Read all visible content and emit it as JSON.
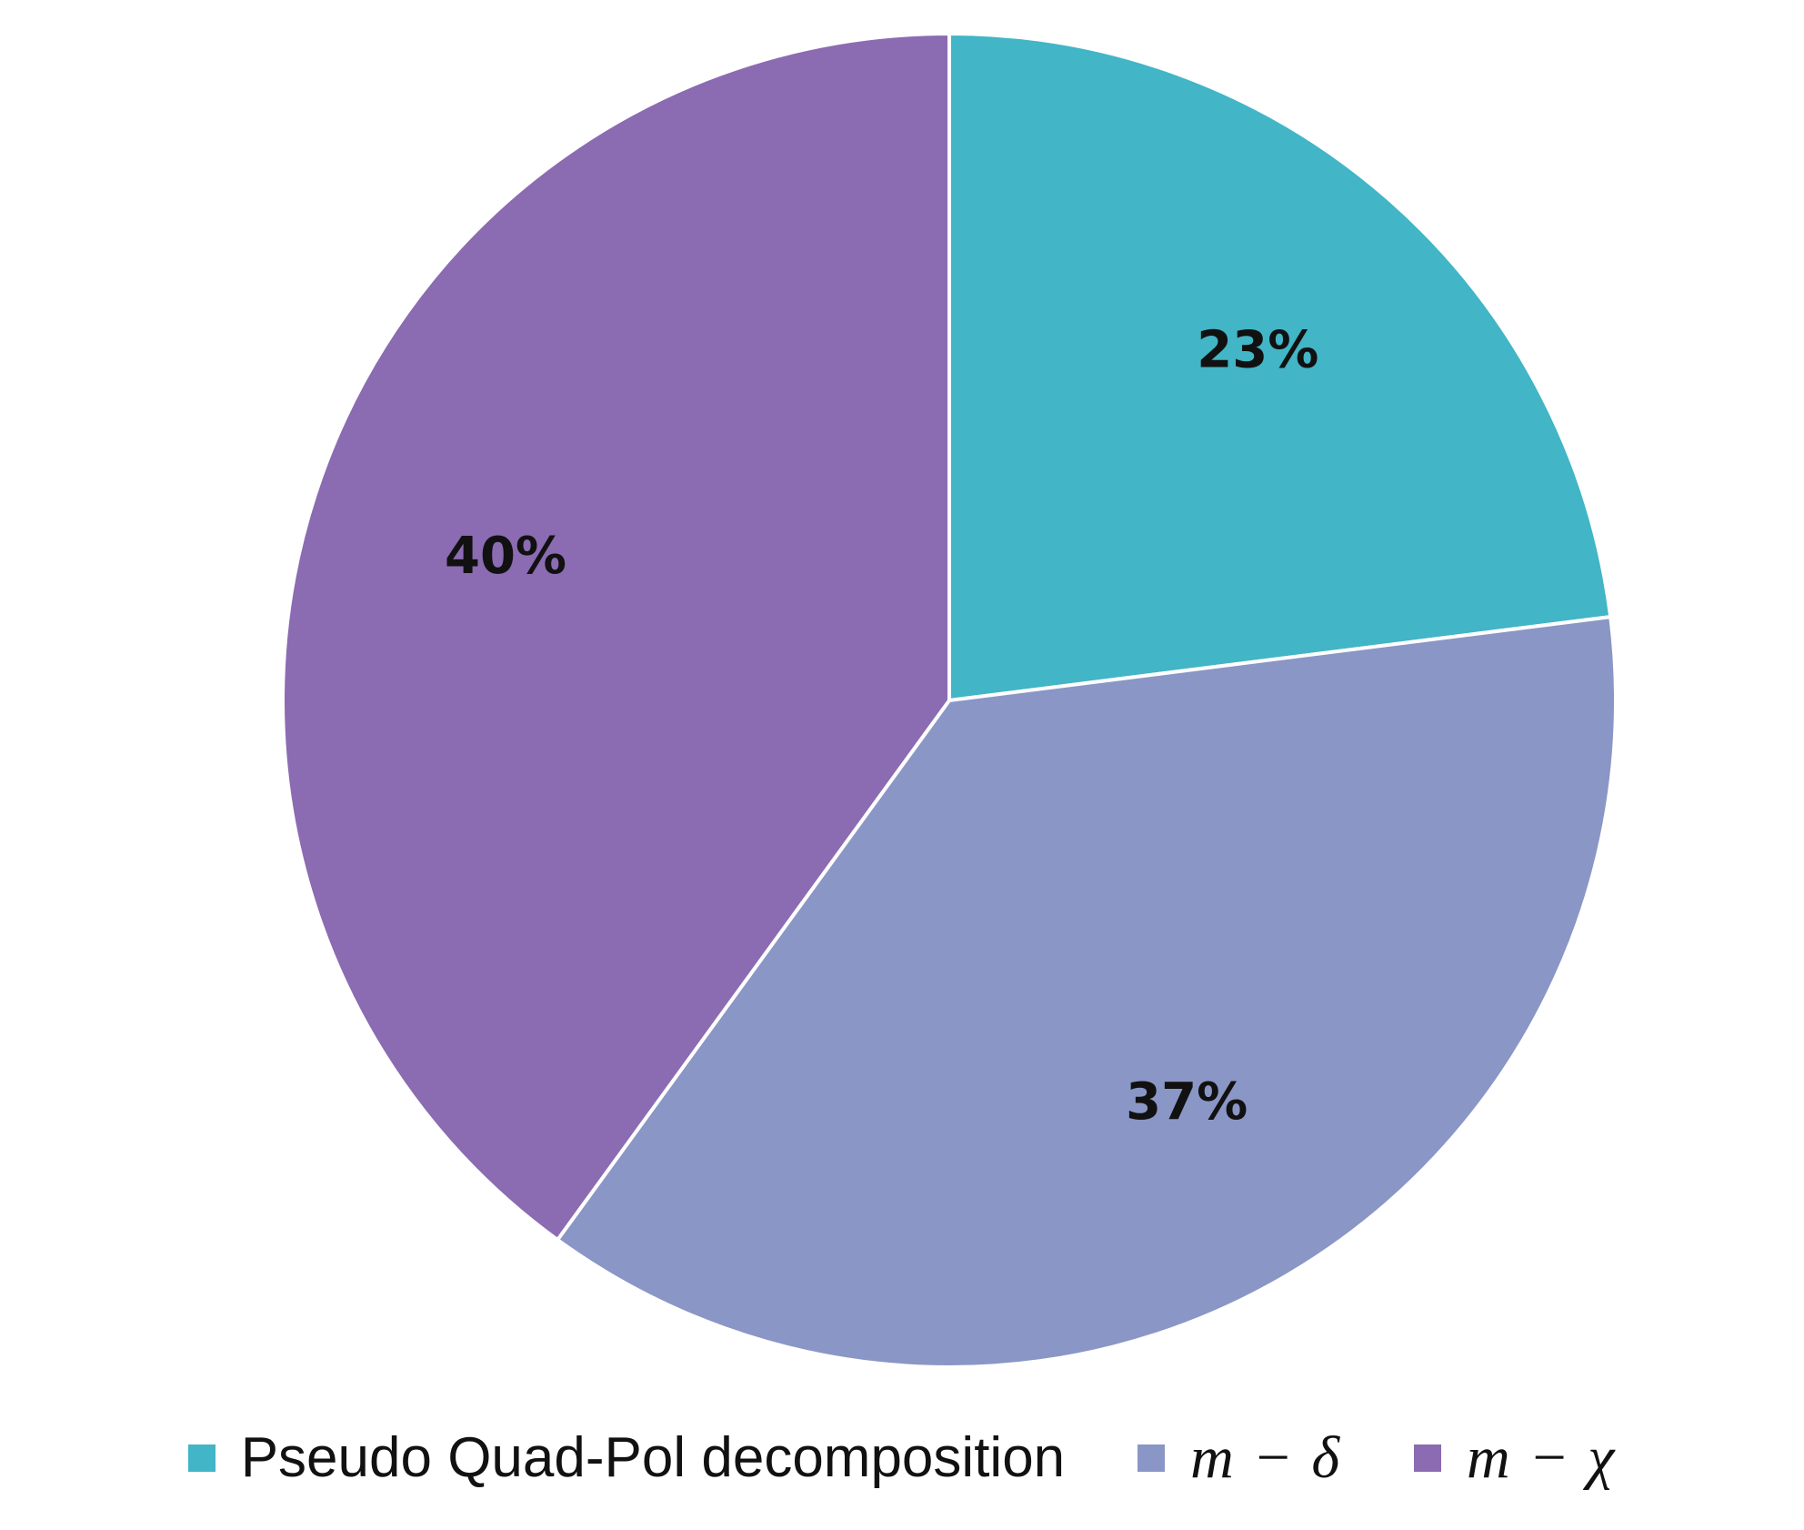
{
  "chart_data": {
    "type": "pie",
    "start_angle_deg": 0,
    "direction": "clockwise",
    "slices": [
      {
        "label": "Pseudo Quad-Pol decomposition",
        "value": 23,
        "display": "23%",
        "color": "#42B5C6",
        "label_math": false
      },
      {
        "label": "m − δ",
        "value": 37,
        "display": "37%",
        "color": "#8A96C6",
        "label_math": true
      },
      {
        "label": "m − χ",
        "value": 40,
        "display": "40%",
        "color": "#8B6BB1",
        "label_math": true
      }
    ],
    "legend": {
      "placement": "bottom"
    },
    "title": ""
  }
}
